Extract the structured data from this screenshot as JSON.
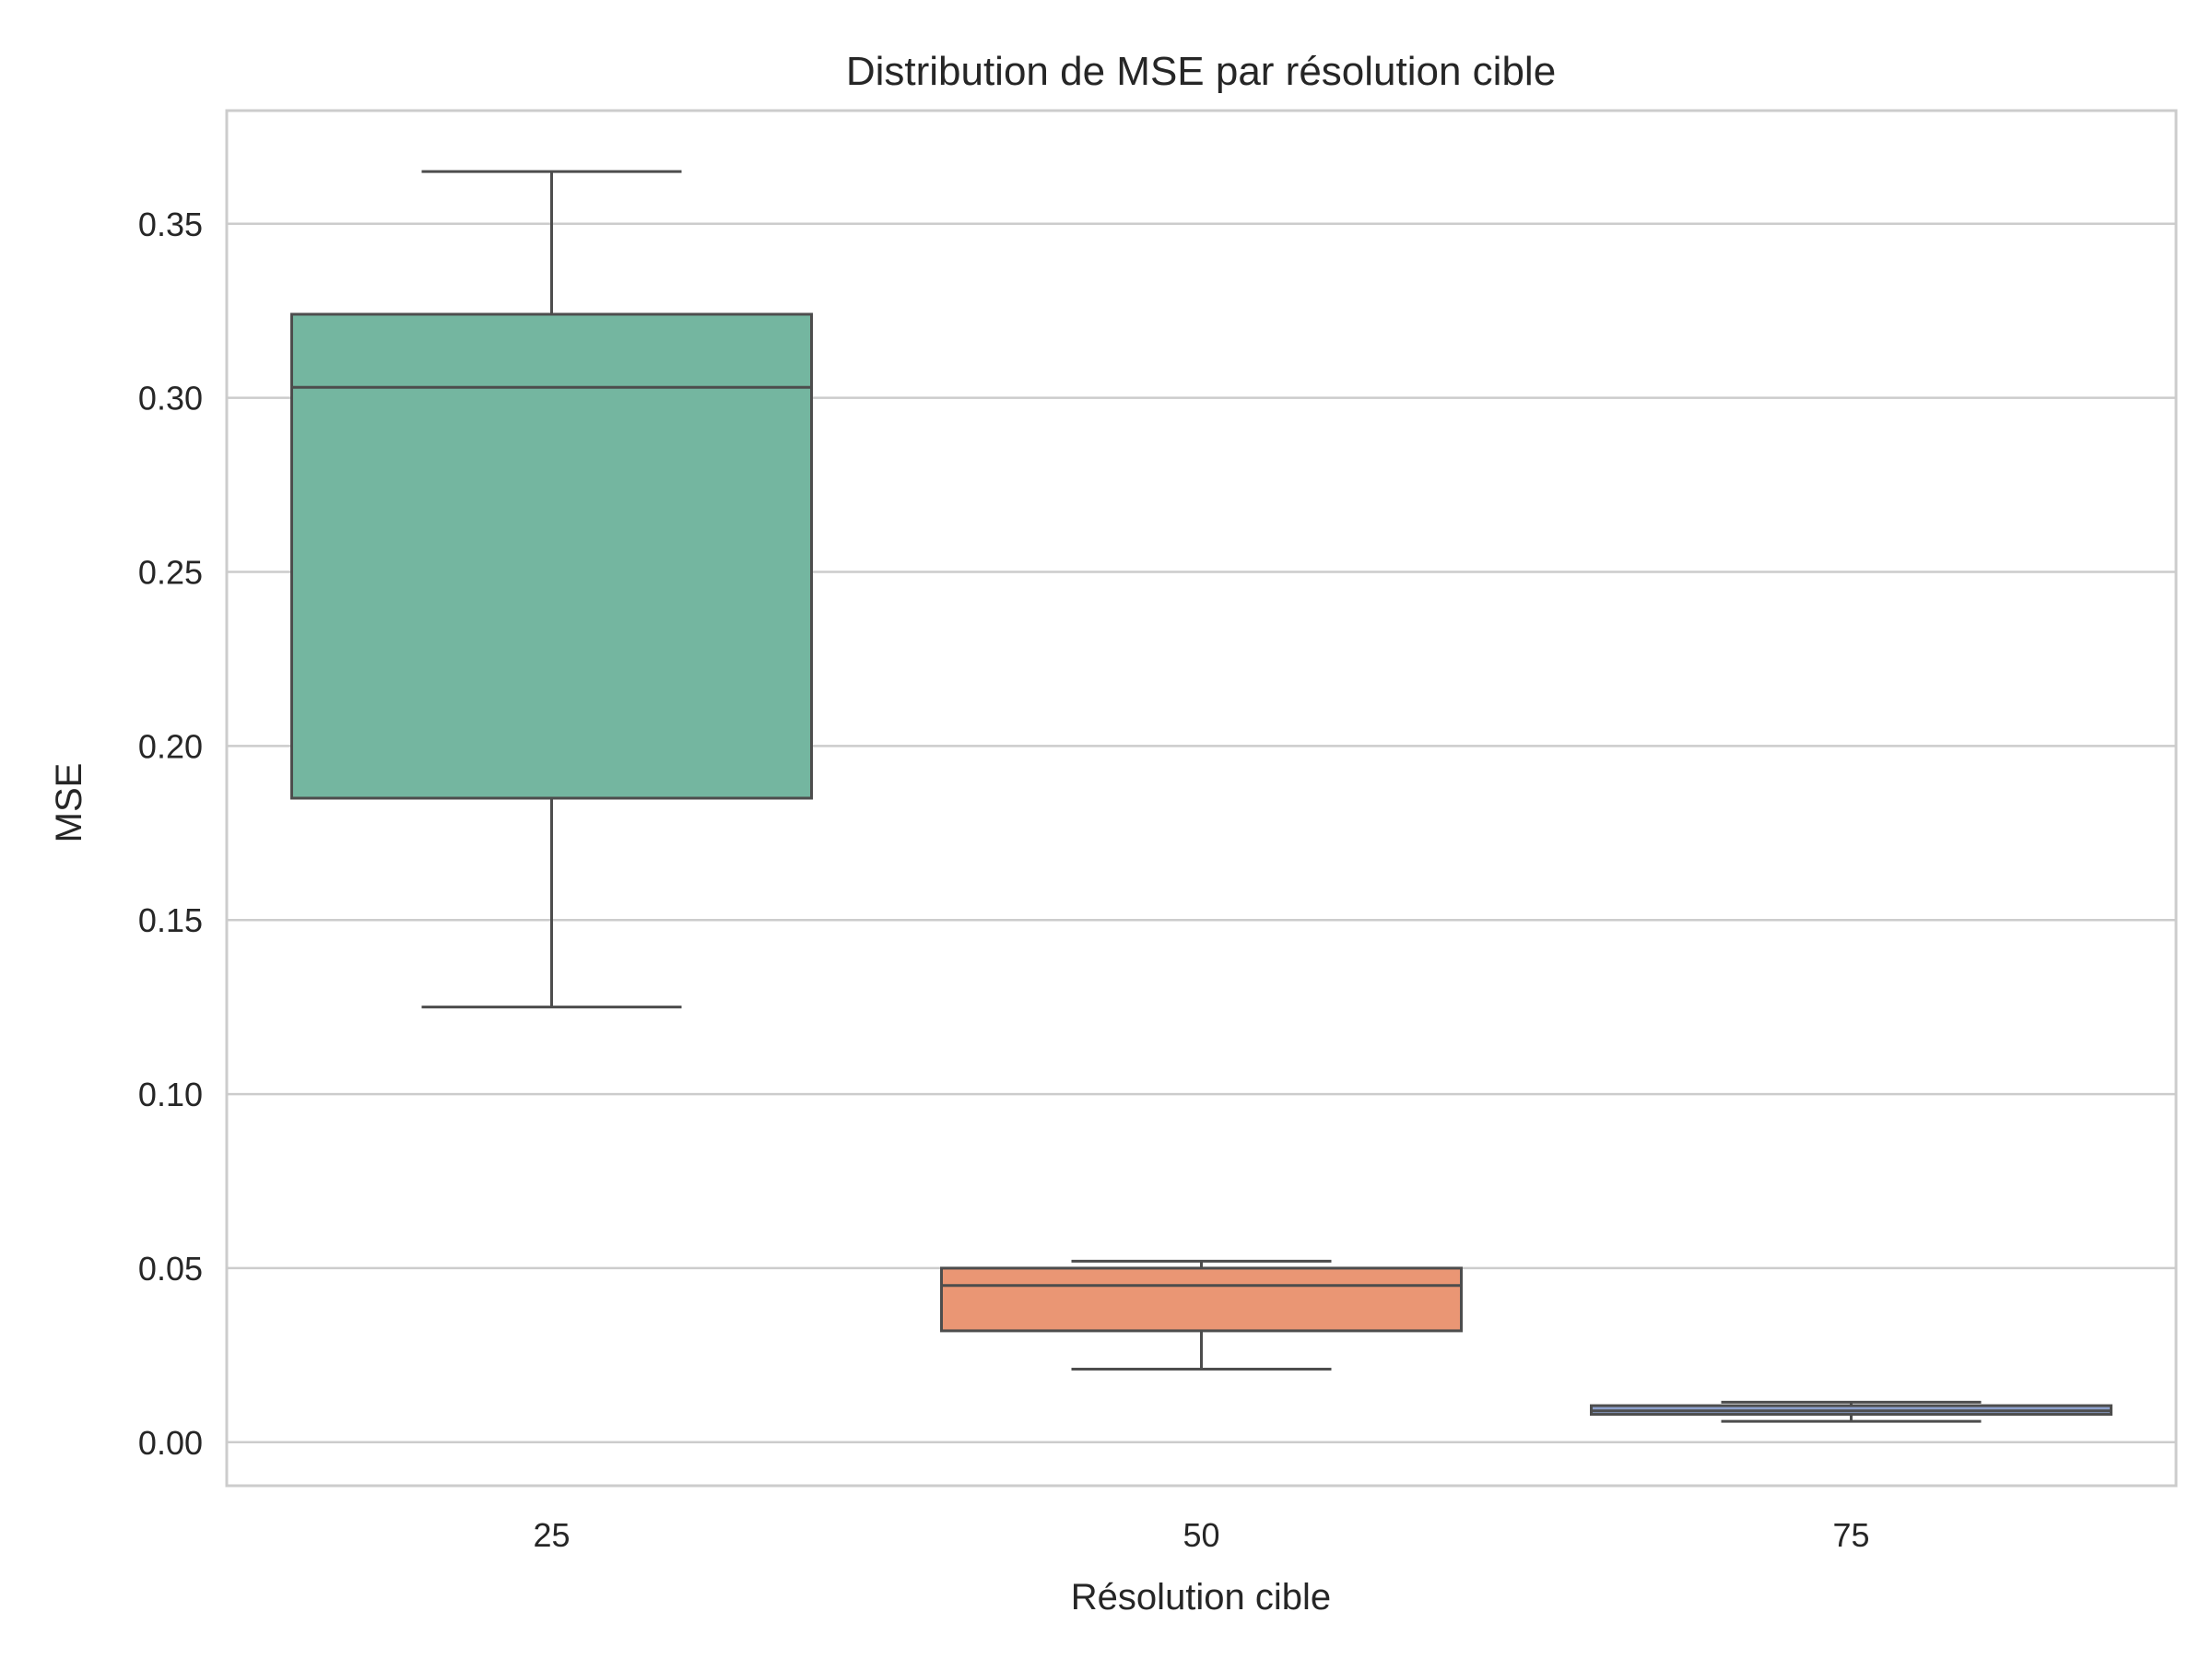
{
  "chart_data": {
    "type": "box",
    "title": "Distribution de MSE par résolution cible",
    "xlabel": "Résolution cible",
    "ylabel": "MSE",
    "categories": [
      "25",
      "50",
      "75"
    ],
    "boxes": [
      {
        "category": "25",
        "whisker_low": 0.125,
        "q1": 0.185,
        "median": 0.303,
        "q3": 0.324,
        "whisker_high": 0.365,
        "color": "#74b6a0"
      },
      {
        "category": "50",
        "whisker_low": 0.021,
        "q1": 0.032,
        "median": 0.045,
        "q3": 0.05,
        "whisker_high": 0.052,
        "color": "#ea9674"
      },
      {
        "category": "75",
        "whisker_low": 0.006,
        "q1": 0.008,
        "median": 0.009,
        "q3": 0.0105,
        "whisker_high": 0.0115,
        "color": "#8da0cb"
      }
    ],
    "yticks": [
      "0.00",
      "0.05",
      "0.10",
      "0.15",
      "0.20",
      "0.25",
      "0.30",
      "0.35"
    ],
    "ylim": [
      -0.0125,
      0.3825
    ],
    "grid": true,
    "grid_axis": "y"
  }
}
